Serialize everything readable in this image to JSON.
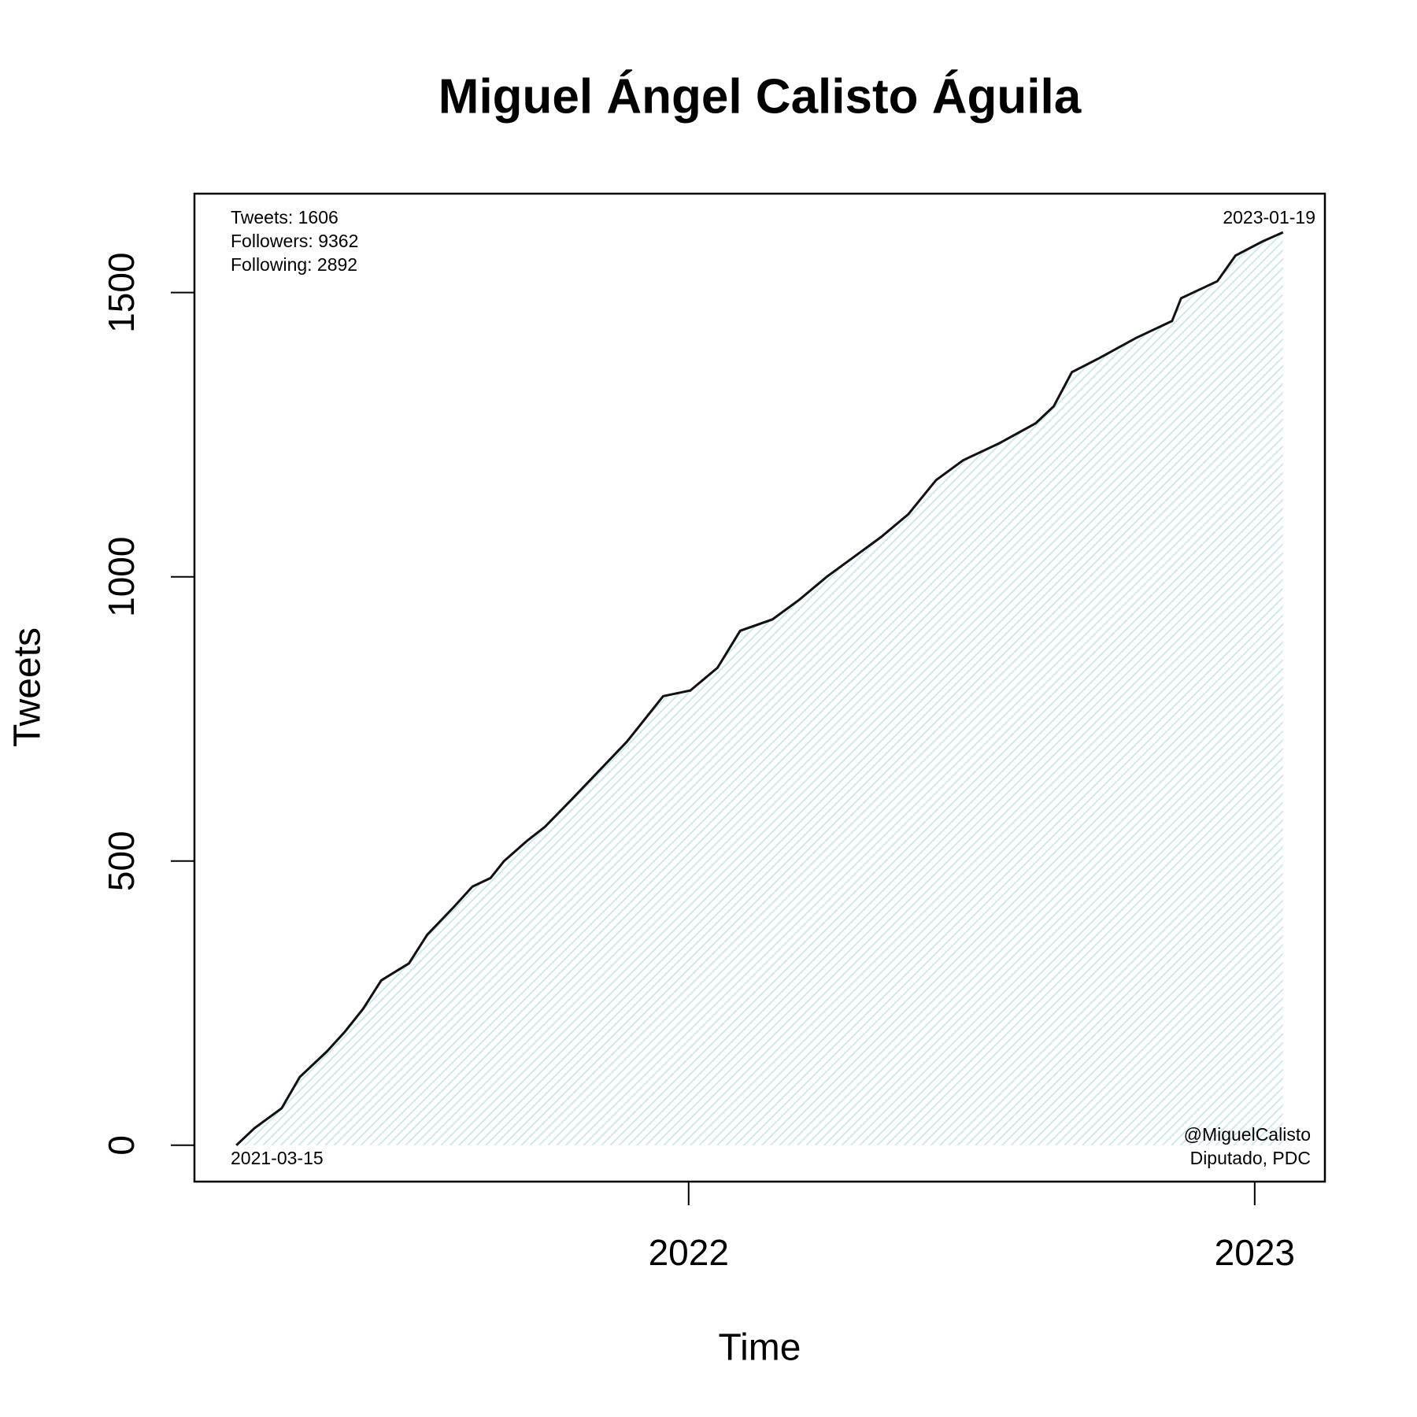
{
  "chart_data": {
    "type": "line",
    "title": "Miguel Ángel Calisto Águila",
    "xlabel": "Time",
    "ylabel": "Tweets",
    "x": [
      2021.201,
      2021.233,
      2021.281,
      2021.313,
      2021.361,
      2021.393,
      2021.425,
      2021.457,
      2021.506,
      2021.538,
      2021.586,
      2021.618,
      2021.65,
      2021.674,
      2021.714,
      2021.746,
      2021.795,
      2021.843,
      2021.891,
      2021.955,
      2022.003,
      2022.051,
      2022.091,
      2022.148,
      2022.196,
      2022.244,
      2022.292,
      2022.34,
      2022.388,
      2022.437,
      2022.485,
      2022.549,
      2022.613,
      2022.645,
      2022.677,
      2022.726,
      2022.79,
      2022.854,
      2022.87,
      2022.934,
      2022.966,
      2023.014,
      2023.05
    ],
    "values": [
      0,
      30,
      65,
      120,
      165,
      200,
      240,
      290,
      320,
      370,
      420,
      455,
      470,
      500,
      535,
      560,
      610,
      660,
      710,
      790,
      800,
      840,
      905,
      925,
      960,
      1000,
      1035,
      1070,
      1110,
      1170,
      1205,
      1235,
      1270,
      1300,
      1360,
      1385,
      1420,
      1450,
      1490,
      1520,
      1565,
      1590,
      1606
    ],
    "color": "#111111",
    "fill_color": "#cfe8ef",
    "xlim": [
      2021.127,
      2023.124
    ],
    "xticks": [
      2022,
      2023
    ],
    "ylim": [
      -64,
      1674
    ],
    "yticks": [
      0,
      500,
      1000,
      1500
    ],
    "annotations": {
      "top_left": [
        "Tweets: 1606",
        "Followers: 9362",
        "Following: 2892"
      ],
      "top_right": [
        "2023-01-19"
      ],
      "bottom_left": [
        "2021-03-15"
      ],
      "bottom_right": [
        "@MiguelCalisto",
        "Diputado, PDC"
      ]
    }
  }
}
